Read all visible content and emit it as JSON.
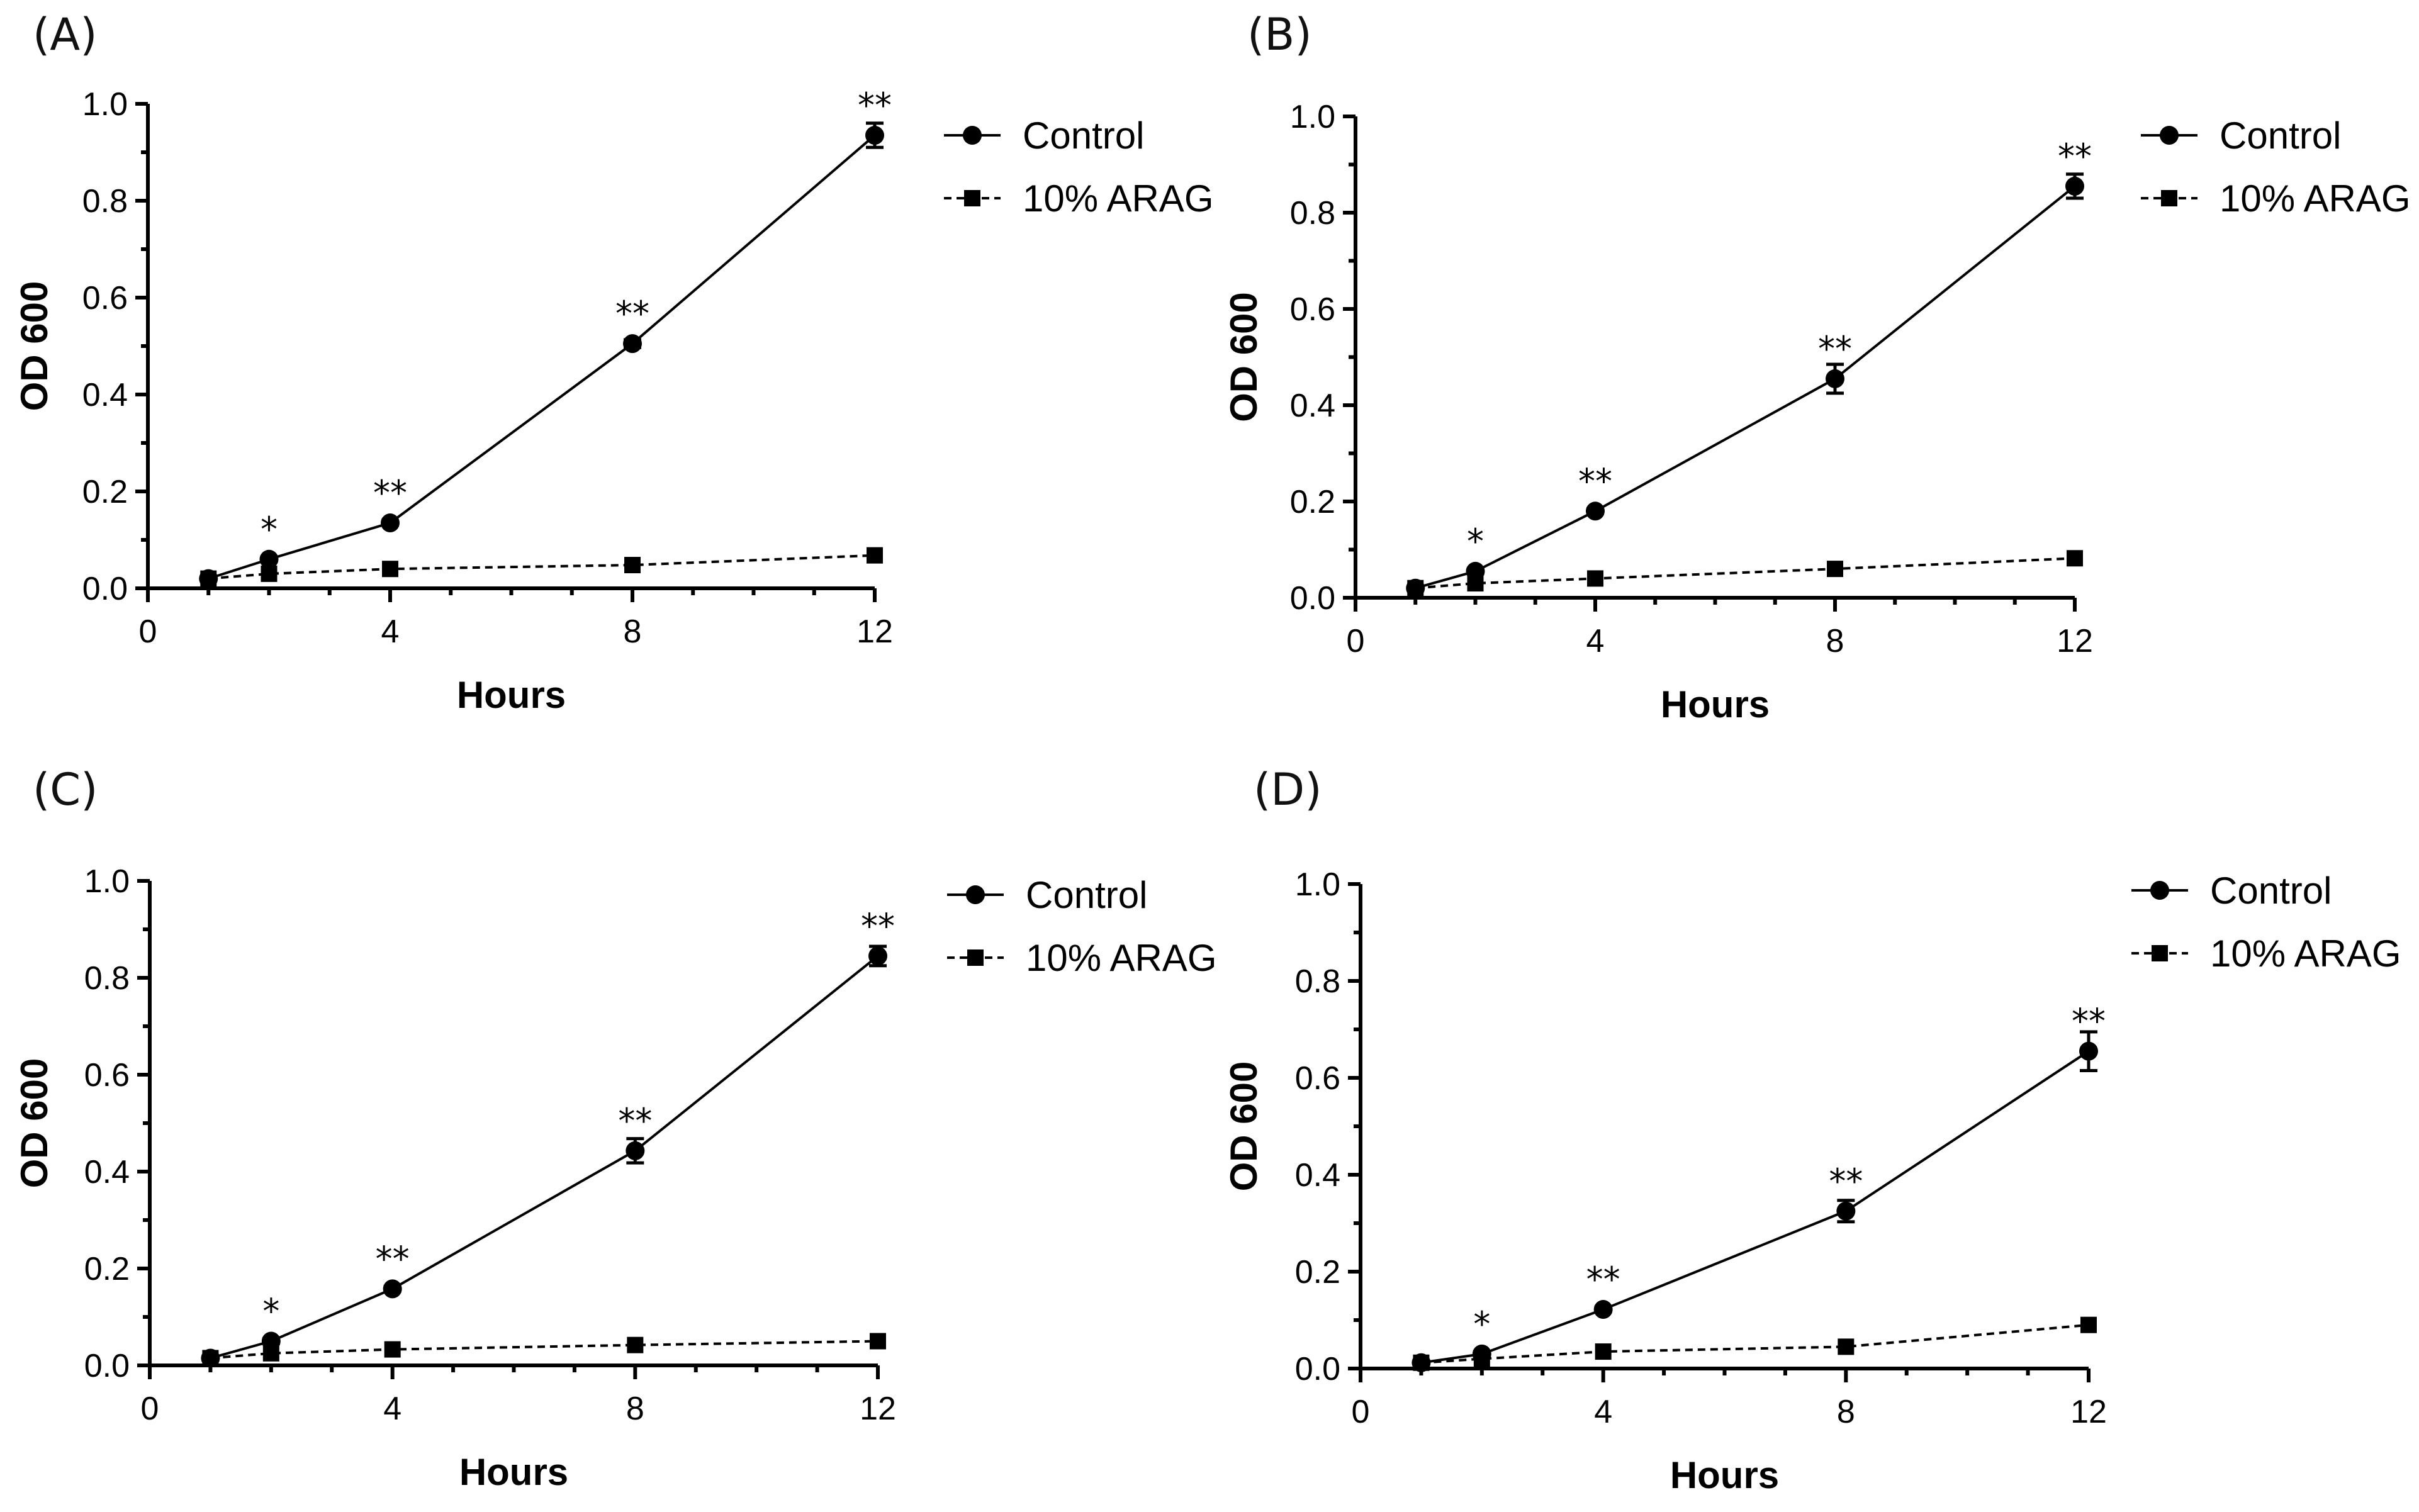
{
  "colors": {
    "ink": "#000000",
    "background": "#ffffff"
  },
  "chart_data": [
    {
      "panel": "(A)",
      "type": "line",
      "xlabel": "Hours",
      "ylabel": "OD 600",
      "xlim": [
        0,
        12
      ],
      "ylim": [
        0,
        1.0
      ],
      "x_ticks": [
        "0",
        "4",
        "8",
        "12"
      ],
      "y_ticks": [
        "0.0",
        "0.2",
        "0.4",
        "0.6",
        "0.8",
        "1.0"
      ],
      "x": [
        1,
        2,
        4,
        8,
        12
      ],
      "series": [
        {
          "name": "Control",
          "marker": "circle",
          "line": "solid",
          "values": [
            0.02,
            0.06,
            0.135,
            0.505,
            0.935
          ],
          "errors": [
            0,
            0.005,
            0.005,
            0.008,
            0.025
          ]
        },
        {
          "name": "10% ARAG",
          "marker": "square",
          "line": "dashed",
          "values": [
            0.02,
            0.03,
            0.04,
            0.048,
            0.068
          ],
          "errors": [
            0,
            0,
            0,
            0,
            0
          ]
        }
      ],
      "significance": [
        {
          "x": 2,
          "y": 0.06,
          "label": "*"
        },
        {
          "x": 4,
          "y": 0.135,
          "label": "**"
        },
        {
          "x": 8,
          "y": 0.505,
          "label": "**"
        },
        {
          "x": 12,
          "y": 0.935,
          "label": "**"
        }
      ],
      "legend": "top-right"
    },
    {
      "panel": "(B)",
      "type": "line",
      "xlabel": "Hours",
      "ylabel": "OD 600",
      "xlim": [
        0,
        12
      ],
      "ylim": [
        0,
        1.0
      ],
      "x_ticks": [
        "0",
        "4",
        "8",
        "12"
      ],
      "y_ticks": [
        "0.0",
        "0.2",
        "0.4",
        "0.6",
        "0.8",
        "1.0"
      ],
      "x": [
        1,
        2,
        4,
        8,
        12
      ],
      "series": [
        {
          "name": "Control",
          "marker": "circle",
          "line": "solid",
          "values": [
            0.02,
            0.055,
            0.18,
            0.455,
            0.855
          ],
          "errors": [
            0,
            0.005,
            0.005,
            0.03,
            0.025
          ]
        },
        {
          "name": "10% ARAG",
          "marker": "square",
          "line": "dashed",
          "values": [
            0.02,
            0.03,
            0.04,
            0.06,
            0.082
          ],
          "errors": [
            0,
            0,
            0,
            0,
            0
          ]
        }
      ],
      "significance": [
        {
          "x": 2,
          "y": 0.055,
          "label": "*"
        },
        {
          "x": 4,
          "y": 0.18,
          "label": "**"
        },
        {
          "x": 8,
          "y": 0.455,
          "label": "**"
        },
        {
          "x": 12,
          "y": 0.855,
          "label": "**"
        }
      ],
      "legend": "top-right"
    },
    {
      "panel": "(C)",
      "type": "line",
      "xlabel": "Hours",
      "ylabel": "OD 600",
      "xlim": [
        0,
        12
      ],
      "ylim": [
        0,
        1.0
      ],
      "x_ticks": [
        "0",
        "4",
        "8",
        "12"
      ],
      "y_ticks": [
        "0.0",
        "0.2",
        "0.4",
        "0.6",
        "0.8",
        "1.0"
      ],
      "x": [
        1,
        2,
        4,
        8,
        12
      ],
      "series": [
        {
          "name": "Control",
          "marker": "circle",
          "line": "solid",
          "values": [
            0.015,
            0.05,
            0.158,
            0.443,
            0.845
          ],
          "errors": [
            0,
            0.005,
            0.005,
            0.025,
            0.02
          ]
        },
        {
          "name": "10% ARAG",
          "marker": "square",
          "line": "dashed",
          "values": [
            0.015,
            0.025,
            0.033,
            0.042,
            0.05
          ],
          "errors": [
            0,
            0,
            0,
            0,
            0
          ]
        }
      ],
      "significance": [
        {
          "x": 2,
          "y": 0.05,
          "label": "*"
        },
        {
          "x": 4,
          "y": 0.158,
          "label": "**"
        },
        {
          "x": 8,
          "y": 0.443,
          "label": "**"
        },
        {
          "x": 12,
          "y": 0.845,
          "label": "**"
        }
      ],
      "legend": "top-right"
    },
    {
      "panel": "(D)",
      "type": "line",
      "xlabel": "Hours",
      "ylabel": "OD 600",
      "xlim": [
        0,
        12
      ],
      "ylim": [
        0,
        1.0
      ],
      "x_ticks": [
        "0",
        "4",
        "8",
        "12"
      ],
      "y_ticks": [
        "0.0",
        "0.2",
        "0.4",
        "0.6",
        "0.8",
        "1.0"
      ],
      "x": [
        1,
        2,
        4,
        8,
        12
      ],
      "series": [
        {
          "name": "Control",
          "marker": "circle",
          "line": "solid",
          "values": [
            0.012,
            0.03,
            0.122,
            0.325,
            0.655
          ],
          "errors": [
            0,
            0.005,
            0.005,
            0.022,
            0.04
          ]
        },
        {
          "name": "10% ARAG",
          "marker": "square",
          "line": "dashed",
          "values": [
            0.012,
            0.02,
            0.035,
            0.045,
            0.09
          ],
          "errors": [
            0,
            0,
            0,
            0,
            0
          ]
        }
      ],
      "significance": [
        {
          "x": 2,
          "y": 0.03,
          "label": "*"
        },
        {
          "x": 4,
          "y": 0.122,
          "label": "**"
        },
        {
          "x": 8,
          "y": 0.325,
          "label": "**"
        },
        {
          "x": 12,
          "y": 0.655,
          "label": "**"
        }
      ],
      "legend": "top-right"
    }
  ]
}
